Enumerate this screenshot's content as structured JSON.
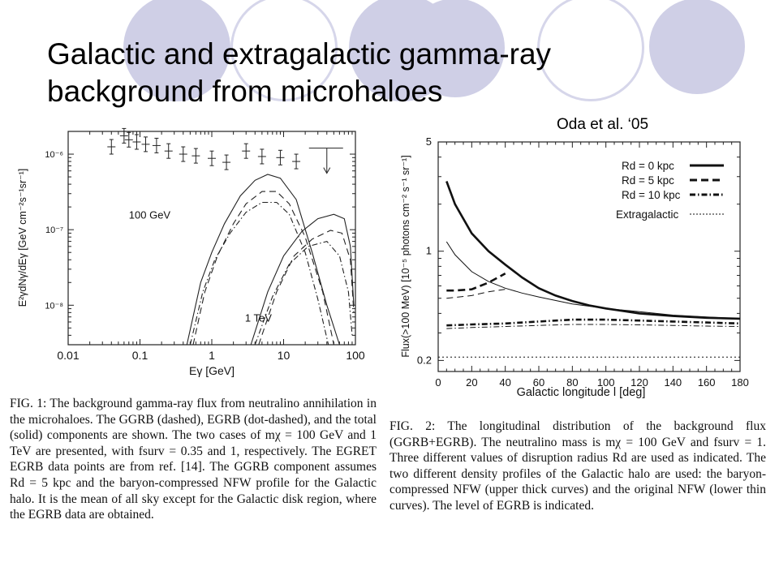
{
  "slide": {
    "title_line1": "Galactic and extragalactic gamma-ray",
    "title_line2": "background from microhaloes",
    "credit": "Oda et al. ‘05",
    "accent_color": "#cfcfe6"
  },
  "captions": {
    "fig1": "FIG. 1: The background gamma-ray flux from neutralino annihilation in the microhaloes. The GGRB (dashed), EGRB (dot-dashed), and the total (solid) components are shown. The two cases of mχ = 100 GeV and 1 TeV are presented, with fsurv = 0.35 and 1, respectively. The EGRET EGRB data points are from ref. [14]. The GGRB component assumes Rd = 5 kpc and the baryon-compressed NFW profile for the Galactic halo. It is the mean of all sky except for the Galactic disk region, where the EGRB data are obtained.",
    "fig2": "FIG. 2: The longitudinal distribution of the background flux (GGRB+EGRB). The neutralino mass is mχ = 100 GeV and fsurv = 1. Three different values of disruption radius Rd are used as indicated. The two different density profiles of the Galactic halo are used: the baryon-compressed NFW (upper thick curves) and the original NFW (lower thin curves). The level of EGRB is indicated."
  },
  "chart_data": [
    {
      "type": "line",
      "xlabel": "Eγ [GeV]",
      "ylabel": "E²γdNγ/dEγ [GeV cm⁻²s⁻¹sr⁻¹]",
      "xscale": "log",
      "yscale": "log",
      "xlim": [
        0.01,
        100
      ],
      "ylim": [
        3e-09,
        2e-06
      ],
      "xticks": [
        "0.01",
        "0.1",
        "1",
        "10",
        "100"
      ],
      "yticks": [
        "10⁻⁸",
        "10⁻⁷",
        "10⁻⁶"
      ],
      "annotations": [
        "100 GeV",
        "1 TeV"
      ],
      "grid": false,
      "data_points": [
        {
          "x": 0.04,
          "y": 1.25e-06
        },
        {
          "x": 0.06,
          "y": 1.75e-06
        },
        {
          "x": 0.07,
          "y": 1.55e-06
        },
        {
          "x": 0.09,
          "y": 1.45e-06
        },
        {
          "x": 0.12,
          "y": 1.35e-06
        },
        {
          "x": 0.17,
          "y": 1.3e-06
        },
        {
          "x": 0.25,
          "y": 1.1e-06
        },
        {
          "x": 0.4,
          "y": 1e-06
        },
        {
          "x": 0.6,
          "y": 9.5e-07
        },
        {
          "x": 1.0,
          "y": 8.8e-07
        },
        {
          "x": 1.6,
          "y": 7.8e-07
        },
        {
          "x": 3.0,
          "y": 1.1e-06
        },
        {
          "x": 5.0,
          "y": 9.3e-07
        },
        {
          "x": 9.0,
          "y": 9e-07
        },
        {
          "x": 15.0,
          "y": 8e-07
        }
      ],
      "upper_limit": {
        "x": 40,
        "y": 1.2e-06
      },
      "series": [
        {
          "style": "solid",
          "points": [
            [
              0.45,
              3e-09
            ],
            [
              0.7,
              2e-08
            ],
            [
              1,
              5e-08
            ],
            [
              1.5,
              1.2e-07
            ],
            [
              2.5,
              2.8e-07
            ],
            [
              4,
              4.5e-07
            ],
            [
              6,
              5.4e-07
            ],
            [
              9,
              4.8e-07
            ],
            [
              15,
              2.5e-07
            ],
            [
              25,
              5e-08
            ],
            [
              40,
              1e-08
            ],
            [
              60,
              3e-09
            ]
          ]
        },
        {
          "style": "dashed",
          "points": [
            [
              0.55,
              3e-09
            ],
            [
              0.8,
              1.5e-08
            ],
            [
              1.2,
              4.5e-08
            ],
            [
              2,
              1.2e-07
            ],
            [
              3,
              2.2e-07
            ],
            [
              5,
              3.2e-07
            ],
            [
              8,
              3.2e-07
            ],
            [
              12,
              2.2e-07
            ],
            [
              20,
              8e-08
            ],
            [
              35,
              1.5e-08
            ],
            [
              50,
              3e-09
            ]
          ]
        },
        {
          "style": "dash-dot",
          "points": [
            [
              0.5,
              3e-09
            ],
            [
              0.75,
              1.5e-08
            ],
            [
              1.1,
              4e-08
            ],
            [
              1.8,
              9e-08
            ],
            [
              3,
              1.7e-07
            ],
            [
              5,
              2.3e-07
            ],
            [
              8,
              2.3e-07
            ],
            [
              12,
              1.6e-07
            ],
            [
              20,
              5e-08
            ],
            [
              30,
              1.2e-08
            ],
            [
              42,
              3e-09
            ]
          ]
        },
        {
          "style": "solid",
          "points": [
            [
              3.5,
              3e-09
            ],
            [
              6,
              1.5e-08
            ],
            [
              10,
              4.5e-08
            ],
            [
              18,
              9.5e-08
            ],
            [
              30,
              1.4e-07
            ],
            [
              50,
              1.6e-07
            ],
            [
              70,
              1.4e-07
            ],
            [
              85,
              6e-08
            ],
            [
              95,
              1e-08
            ]
          ]
        },
        {
          "style": "dashed",
          "points": [
            [
              4.5,
              3e-09
            ],
            [
              8,
              1.5e-08
            ],
            [
              14,
              4.5e-08
            ],
            [
              25,
              7.5e-08
            ],
            [
              45,
              9.8e-08
            ],
            [
              65,
              9e-08
            ],
            [
              85,
              4e-08
            ],
            [
              95,
              8e-09
            ]
          ]
        },
        {
          "style": "dash-dot",
          "points": [
            [
              4,
              3e-09
            ],
            [
              7,
              1.3e-08
            ],
            [
              12,
              3.5e-08
            ],
            [
              22,
              6e-08
            ],
            [
              40,
              7e-08
            ],
            [
              60,
              4.5e-08
            ],
            [
              80,
              1.5e-08
            ],
            [
              90,
              4e-09
            ]
          ]
        }
      ]
    },
    {
      "type": "line",
      "xlabel": "Galactic longitude l [deg]",
      "ylabel": "Flux(>100 MeV) [10⁻⁵ photons cm⁻² s⁻¹ sr⁻¹]",
      "xlim": [
        0,
        180
      ],
      "ylim": [
        0.2,
        5
      ],
      "yscale": "log",
      "xticks": [
        0,
        20,
        40,
        60,
        80,
        100,
        120,
        140,
        160,
        180
      ],
      "yticks": [
        {
          "value": 0.2,
          "label": "0.2"
        },
        {
          "value": 1,
          "label": "1"
        },
        {
          "value": 5,
          "label": "5"
        }
      ],
      "grid": false,
      "legend": {
        "position": "top-right",
        "entries": [
          "Rd = 0 kpc",
          "Rd = 5 kpc",
          "Rd = 10 kpc",
          "Extragalactic"
        ]
      },
      "series": [
        {
          "name": "Rd = 0 kpc",
          "profile": "baryon-compressed NFW",
          "style": "solid-thick",
          "points": [
            [
              5,
              2.8
            ],
            [
              10,
              2.0
            ],
            [
              20,
              1.3
            ],
            [
              30,
              1.0
            ],
            [
              40,
              0.82
            ],
            [
              50,
              0.68
            ],
            [
              60,
              0.58
            ],
            [
              70,
              0.52
            ],
            [
              80,
              0.48
            ],
            [
              90,
              0.45
            ],
            [
              100,
              0.43
            ],
            [
              110,
              0.415
            ],
            [
              120,
              0.4
            ],
            [
              140,
              0.385
            ],
            [
              160,
              0.375
            ],
            [
              180,
              0.37
            ]
          ]
        },
        {
          "name": "Rd = 0 kpc",
          "profile": "original NFW",
          "style": "solid-thin",
          "points": [
            [
              5,
              1.15
            ],
            [
              10,
              0.95
            ],
            [
              20,
              0.74
            ],
            [
              30,
              0.64
            ],
            [
              40,
              0.58
            ],
            [
              50,
              0.54
            ],
            [
              60,
              0.51
            ],
            [
              80,
              0.46
            ],
            [
              100,
              0.43
            ],
            [
              120,
              0.41
            ],
            [
              140,
              0.39
            ],
            [
              160,
              0.38
            ],
            [
              180,
              0.37
            ]
          ]
        },
        {
          "name": "Rd = 5 kpc",
          "profile": "baryon-compressed NFW",
          "style": "dashed-thick",
          "points": [
            [
              5,
              0.56
            ],
            [
              10,
              0.56
            ],
            [
              20,
              0.57
            ],
            [
              30,
              0.63
            ],
            [
              40,
              0.72
            ]
          ]
        },
        {
          "name": "Rd = 5 kpc",
          "profile": "original NFW",
          "style": "dashed-thin",
          "points": [
            [
              5,
              0.5
            ],
            [
              20,
              0.52
            ],
            [
              30,
              0.55
            ],
            [
              40,
              0.57
            ]
          ]
        },
        {
          "name": "Rd = 10 kpc",
          "profile": "baryon-compressed NFW",
          "style": "dash-dot-thick",
          "points": [
            [
              5,
              0.335
            ],
            [
              20,
              0.34
            ],
            [
              40,
              0.345
            ],
            [
              60,
              0.355
            ],
            [
              80,
              0.365
            ],
            [
              100,
              0.365
            ],
            [
              120,
              0.36
            ],
            [
              140,
              0.355
            ],
            [
              160,
              0.35
            ],
            [
              180,
              0.345
            ]
          ]
        },
        {
          "name": "Rd = 10 kpc",
          "profile": "original NFW",
          "style": "dash-dot-thin",
          "points": [
            [
              5,
              0.32
            ],
            [
              20,
              0.325
            ],
            [
              40,
              0.33
            ],
            [
              60,
              0.335
            ],
            [
              80,
              0.34
            ],
            [
              100,
              0.34
            ],
            [
              120,
              0.338
            ],
            [
              140,
              0.335
            ],
            [
              160,
              0.332
            ],
            [
              180,
              0.33
            ]
          ]
        },
        {
          "name": "Extragalactic",
          "style": "dotted",
          "points": [
            [
              0,
              0.21
            ],
            [
              180,
              0.21
            ]
          ]
        }
      ]
    }
  ]
}
